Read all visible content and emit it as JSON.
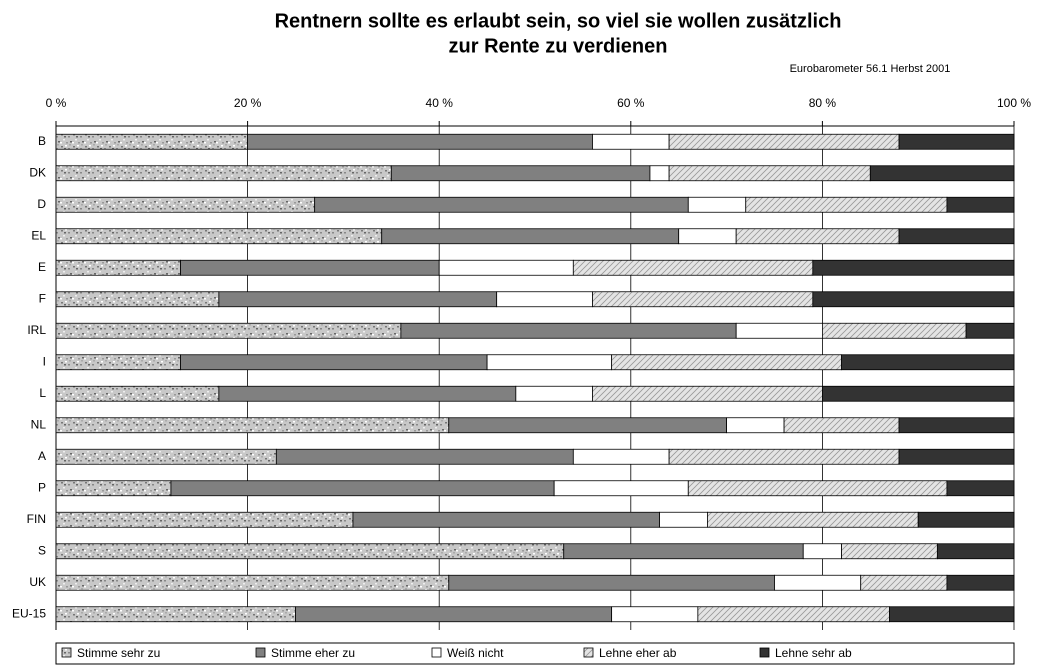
{
  "chart_data": {
    "type": "stacked-barh",
    "title": [
      "Rentnern sollte es erlaubt sein, so viel sie wollen zusätzlich",
      "zur Rente zu verdienen"
    ],
    "annotation": "Eurobarometer 56.1  Herbst 2001",
    "categories": [
      "B",
      "DK",
      "D",
      "EL",
      "E",
      "F",
      "IRL",
      "I",
      "L",
      "NL",
      "A",
      "P",
      "FIN",
      "S",
      "UK",
      "EU-15"
    ],
    "series": [
      {
        "name": "Stimme sehr zu",
        "color": "#c8c8c8",
        "values": [
          20,
          35,
          27,
          34,
          13,
          17,
          36,
          13,
          17,
          41,
          23,
          12,
          31,
          53,
          41,
          25
        ]
      },
      {
        "name": "Stimme eher zu",
        "color": "#808080",
        "values": [
          36,
          27,
          39,
          31,
          27,
          29,
          35,
          32,
          31,
          29,
          31,
          40,
          32,
          25,
          34,
          33
        ]
      },
      {
        "name": "Weiß nicht",
        "color": "#ffffff",
        "values": [
          8,
          2,
          6,
          6,
          14,
          10,
          9,
          13,
          8,
          6,
          10,
          14,
          5,
          4,
          9,
          9
        ]
      },
      {
        "name": "Lehne eher ab",
        "color": "#e4e4e4",
        "values": [
          24,
          21,
          21,
          17,
          25,
          23,
          15,
          24,
          24,
          12,
          24,
          27,
          22,
          10,
          9,
          20
        ]
      },
      {
        "name": "Lehne sehr ab",
        "color": "#333333",
        "values": [
          12,
          15,
          7,
          12,
          21,
          21,
          5,
          18,
          20,
          12,
          12,
          7,
          10,
          8,
          7,
          13
        ]
      }
    ],
    "xlim": [
      0,
      100
    ],
    "xticks": [
      {
        "value": 0,
        "label": "0 %"
      },
      {
        "value": 20,
        "label": "20 %"
      },
      {
        "value": 40,
        "label": "40 %"
      },
      {
        "value": 60,
        "label": "60 %"
      },
      {
        "value": 80,
        "label": "80 %"
      },
      {
        "value": 100,
        "label": "100 %"
      }
    ],
    "grid": true,
    "legend": "bottom"
  }
}
